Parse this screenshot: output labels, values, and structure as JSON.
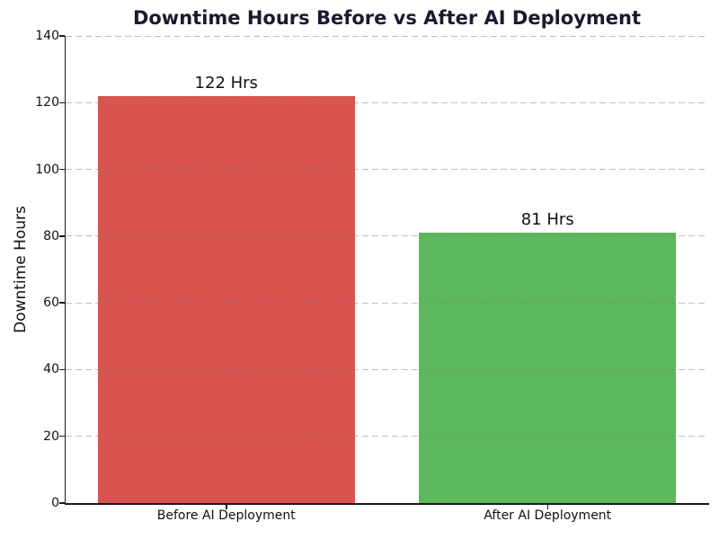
{
  "chart_data": {
    "type": "bar",
    "title": "Downtime Hours Before vs After AI Deployment",
    "title_color": "#1a1a2e",
    "categories": [
      "Before AI Deployment",
      "After AI Deployment"
    ],
    "values": [
      122,
      81
    ],
    "bar_labels": [
      "122 Hrs",
      "81 Hrs"
    ],
    "bar_colors": [
      "#d9534f",
      "#5cb85c"
    ],
    "xlabel": "",
    "ylabel": "Downtime Hours",
    "ylim": [
      0,
      140
    ],
    "yticks": [
      0,
      20,
      40,
      60,
      80,
      100,
      120,
      140
    ],
    "grid": "horizontal-dashed",
    "legend": "none",
    "background": "#ffffff"
  }
}
